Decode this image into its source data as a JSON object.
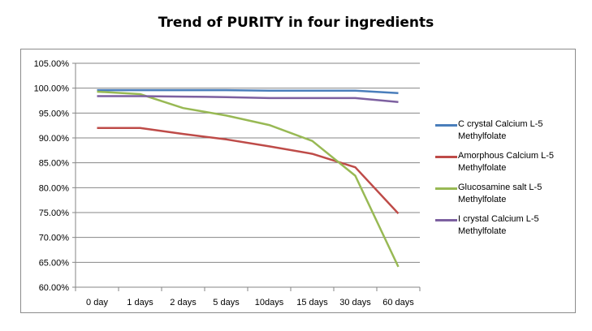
{
  "chart_data": {
    "type": "line",
    "title": "Trend of PURITY in four ingredients",
    "xlabel": "",
    "ylabel": "",
    "categories": [
      "0 day",
      "1 days",
      "2 days",
      "5 days",
      "10days",
      "15 days",
      "30 days",
      "60 days"
    ],
    "ylim": [
      0.6,
      1.05
    ],
    "yticks": [
      "60.00%",
      "65.00%",
      "70.00%",
      "75.00%",
      "80.00%",
      "85.00%",
      "90.00%",
      "95.00%",
      "100.00%",
      "105.00%"
    ],
    "grid": true,
    "legend_position": "right",
    "series": [
      {
        "name": "C crystal Calcium L-5 Methylfolate",
        "color": "#4a7ebb",
        "values": [
          0.996,
          0.996,
          0.996,
          0.996,
          0.995,
          0.995,
          0.995,
          0.99
        ]
      },
      {
        "name": "Amorphous Calcium L-5 Methylfolate",
        "color": "#be4b48",
        "values": [
          0.92,
          0.92,
          0.908,
          0.897,
          0.883,
          0.868,
          0.841,
          0.748
        ]
      },
      {
        "name": "Glucosamine salt L-5 Methylfolate",
        "color": "#98b954",
        "values": [
          0.993,
          0.988,
          0.96,
          0.945,
          0.926,
          0.894,
          0.824,
          0.641
        ]
      },
      {
        "name": "I crystal Calcium L-5 Methylfolate",
        "color": "#7d60a0",
        "values": [
          0.984,
          0.984,
          0.983,
          0.982,
          0.98,
          0.98,
          0.98,
          0.972
        ]
      }
    ]
  }
}
